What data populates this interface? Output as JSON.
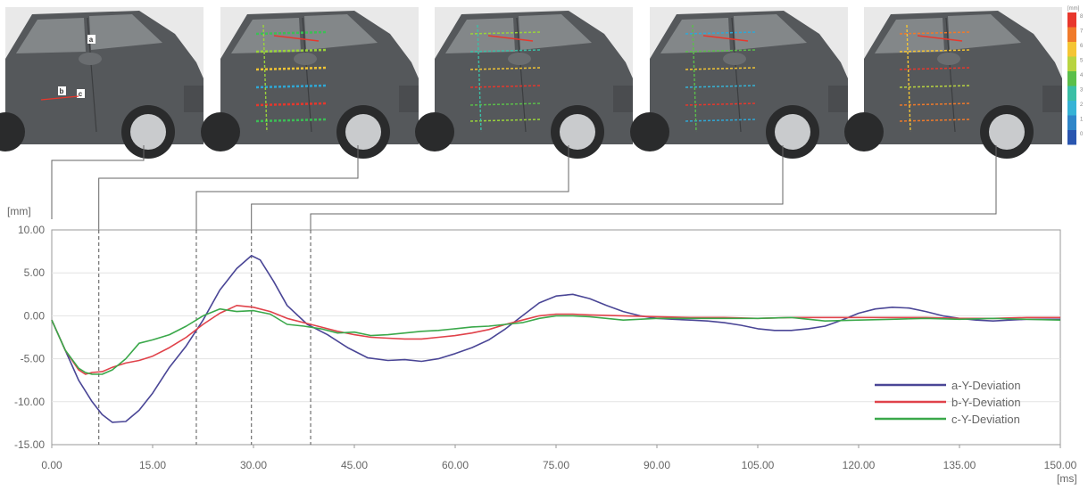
{
  "chart_data": {
    "type": "line",
    "xlabel": "[ms]",
    "ylabel": "[mm]",
    "xlim": [
      0,
      150
    ],
    "ylim": [
      -15,
      10
    ],
    "x_ticks": [
      "0.00",
      "15.00",
      "30.00",
      "45.00",
      "60.00",
      "75.00",
      "90.00",
      "105.00",
      "120.00",
      "135.00",
      "150.00"
    ],
    "y_ticks": [
      "10.00",
      "5.00",
      "0.00",
      "-5.00",
      "-10.00",
      "-15.00"
    ],
    "legend_position": "bottom-right",
    "grid": "horizontal",
    "markers_ms": [
      7,
      21.5,
      29.7,
      38.5
    ],
    "series": [
      {
        "name": "a-Y-Deviation",
        "color": "#4a4696",
        "x": [
          0,
          2,
          4,
          6,
          7.5,
          9,
          11,
          13,
          15,
          17.5,
          20,
          22.5,
          25,
          27.5,
          29.7,
          31,
          33,
          35,
          38,
          41,
          44,
          47,
          50,
          52.5,
          55,
          57.5,
          60,
          62.5,
          65,
          67.5,
          70,
          72.5,
          75,
          77.5,
          80,
          82.5,
          85,
          87.5,
          90,
          92.5,
          95,
          97.5,
          100,
          102.5,
          105,
          107.5,
          110,
          112.5,
          115,
          117.5,
          120,
          122.5,
          125,
          127.5,
          130,
          132.5,
          135,
          137.5,
          140,
          142.5,
          145,
          147.5,
          150
        ],
        "y": [
          -0.5,
          -4,
          -7.5,
          -10,
          -11.5,
          -12.4,
          -12.3,
          -11,
          -9,
          -6,
          -3.5,
          -0.5,
          3,
          5.5,
          7,
          6.5,
          4,
          1.2,
          -1,
          -2.2,
          -3.7,
          -4.9,
          -5.2,
          -5.1,
          -5.3,
          -5,
          -4.4,
          -3.7,
          -2.8,
          -1.5,
          0,
          1.5,
          2.3,
          2.5,
          2,
          1.2,
          0.5,
          0,
          -0.3,
          -0.4,
          -0.5,
          -0.6,
          -0.8,
          -1.1,
          -1.5,
          -1.7,
          -1.7,
          -1.5,
          -1.2,
          -0.5,
          0.3,
          0.8,
          1,
          0.9,
          0.5,
          0,
          -0.3,
          -0.5,
          -0.6,
          -0.5,
          -0.4,
          -0.4,
          -0.4
        ]
      },
      {
        "name": "b-Y-Deviation",
        "color": "#e0424a",
        "x": [
          0,
          2,
          4,
          5,
          6,
          7.5,
          9,
          11,
          13,
          15,
          17.5,
          20,
          22.5,
          25,
          27.5,
          30,
          32.5,
          35,
          37.5,
          40,
          42.5,
          45,
          47.5,
          50,
          52.5,
          55,
          57.5,
          60,
          62.5,
          65,
          67.5,
          70,
          72.5,
          75,
          77.5,
          80,
          85,
          90,
          95,
          100,
          105,
          110,
          115,
          120,
          125,
          130,
          135,
          140,
          145,
          150
        ],
        "y": [
          -0.5,
          -4,
          -6.3,
          -6.8,
          -6.6,
          -6.5,
          -6,
          -5.5,
          -5.2,
          -4.7,
          -3.7,
          -2.5,
          -1,
          0.3,
          1.2,
          1,
          0.5,
          -0.3,
          -0.8,
          -1.3,
          -1.8,
          -2.2,
          -2.5,
          -2.6,
          -2.7,
          -2.7,
          -2.5,
          -2.3,
          -2,
          -1.6,
          -1,
          -0.5,
          0,
          0.2,
          0.2,
          0.1,
          0,
          -0.1,
          -0.2,
          -0.2,
          -0.3,
          -0.2,
          -0.2,
          -0.2,
          -0.2,
          -0.2,
          -0.3,
          -0.3,
          -0.2,
          -0.2
        ]
      },
      {
        "name": "c-Y-Deviation",
        "color": "#3aa84a",
        "x": [
          0,
          2,
          4,
          5,
          6,
          7.5,
          9,
          11,
          13,
          15,
          17.5,
          20,
          22.5,
          25,
          27.5,
          30,
          32.5,
          35,
          37.5,
          40,
          42.5,
          45,
          47.5,
          50,
          52.5,
          55,
          57.5,
          60,
          62.5,
          65,
          67.5,
          70,
          72.5,
          75,
          77.5,
          80,
          85,
          90,
          95,
          100,
          105,
          110,
          115,
          120,
          125,
          130,
          135,
          140,
          145,
          150
        ],
        "y": [
          -0.5,
          -4,
          -6.1,
          -6.6,
          -6.8,
          -6.8,
          -6.3,
          -5,
          -3.2,
          -2.8,
          -2.2,
          -1.2,
          0,
          0.8,
          0.5,
          0.6,
          0.2,
          -1,
          -1.2,
          -1.5,
          -2,
          -1.9,
          -2.3,
          -2.2,
          -2,
          -1.8,
          -1.7,
          -1.5,
          -1.3,
          -1.2,
          -1,
          -0.8,
          -0.3,
          0,
          0,
          -0.1,
          -0.5,
          -0.3,
          -0.3,
          -0.3,
          -0.3,
          -0.2,
          -0.6,
          -0.5,
          -0.4,
          -0.3,
          -0.4,
          -0.3,
          -0.4,
          -0.5
        ]
      }
    ]
  },
  "colorscale": {
    "unit": "[mm]",
    "labels": [
      "8",
      "7",
      "6",
      "5",
      "4",
      "3",
      "2",
      "1",
      "0"
    ],
    "colors": [
      "#e8372c",
      "#f07a2a",
      "#f5c533",
      "#b8d440",
      "#5bbf4a",
      "#3bbfa6",
      "#36b3d6",
      "#2f86c9",
      "#2a56b0"
    ]
  },
  "photos": {
    "markers": [
      "a",
      "b",
      "c"
    ],
    "body_color": "#55585b",
    "glass_color": "#8c8f92",
    "background": "#e9e9e9"
  }
}
